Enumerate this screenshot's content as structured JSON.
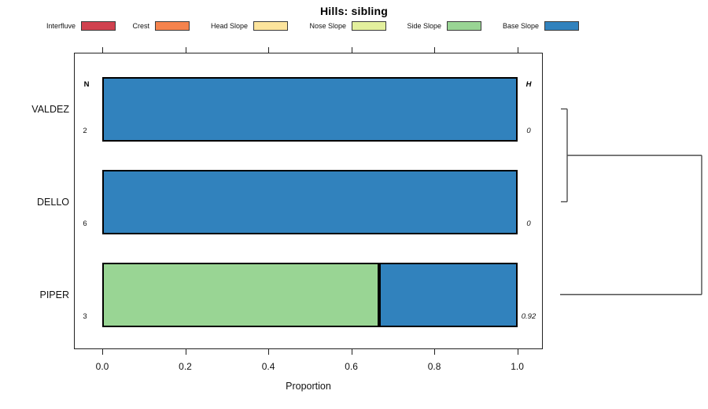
{
  "title": "Hills: sibling",
  "x_axis": {
    "label": "Proportion"
  },
  "columns": {
    "n_header": "N",
    "h_header": "H"
  },
  "chart_data": {
    "type": "bar",
    "orientation": "horizontal",
    "stacked": true,
    "title": "Hills: sibling",
    "xlabel": "Proportion",
    "xlim": [
      0,
      1
    ],
    "x_ticks": [
      "0.0",
      "0.2",
      "0.4",
      "0.6",
      "0.8",
      "1.0"
    ],
    "x_tick_values": [
      0,
      0.2,
      0.4,
      0.6,
      0.8,
      1.0
    ],
    "grid": false,
    "legend_position": "top",
    "categories": [
      "VALDEZ",
      "DELLO",
      "PIPER"
    ],
    "n_column": {
      "header": "N",
      "values": [
        "2",
        "6",
        "3"
      ]
    },
    "h_column": {
      "header": "H",
      "values": [
        "0",
        "0",
        "0.92"
      ]
    },
    "series": [
      {
        "name": "Interfluve",
        "color": "#D0414F",
        "values": [
          0,
          0,
          0
        ]
      },
      {
        "name": "Crest",
        "color": "#F5834D",
        "values": [
          0,
          0,
          0
        ]
      },
      {
        "name": "Head Slope",
        "color": "#FCE49C",
        "values": [
          0,
          0,
          0
        ]
      },
      {
        "name": "Nose Slope",
        "color": "#E3F09D",
        "values": [
          0,
          0,
          0
        ]
      },
      {
        "name": "Side Slope",
        "color": "#99D594",
        "values": [
          0,
          0,
          0.667
        ]
      },
      {
        "name": "Base Slope",
        "color": "#3182BD",
        "values": [
          1.0,
          1.0,
          0.333
        ]
      }
    ],
    "dendrogram": {
      "merges": [
        {
          "members": [
            "VALDEZ",
            "DELLO"
          ],
          "height": 0
        },
        {
          "members": [
            "VALDEZ+DELLO",
            "PIPER"
          ],
          "height": 0.92
        }
      ]
    }
  }
}
